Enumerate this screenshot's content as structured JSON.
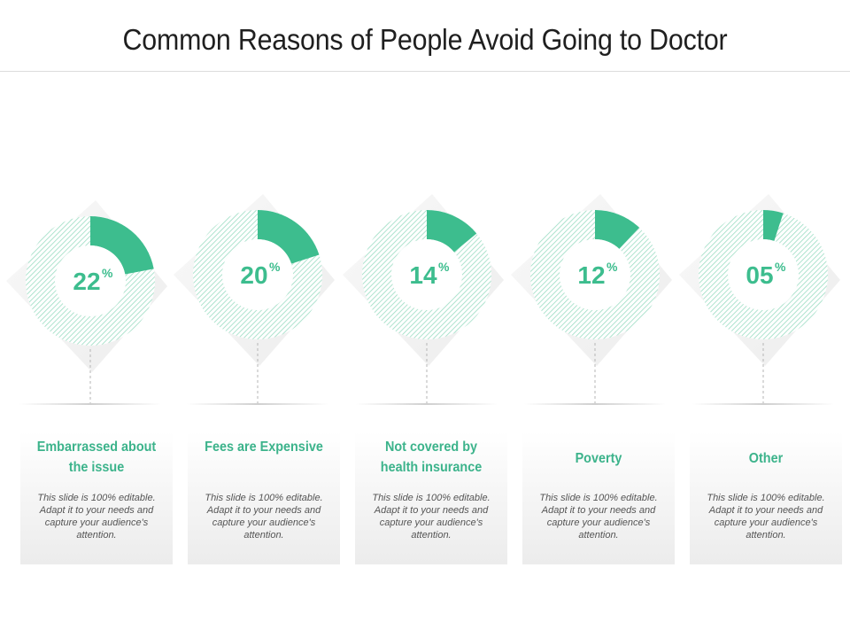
{
  "title": "Common Reasons of People Avoid Going to Doctor",
  "colors": {
    "accent": "#3dbd8e",
    "ring_stripe": "#9adcc2",
    "title_text": "#1f1f1f",
    "card_title": "#3cb38b",
    "body_text": "#555555"
  },
  "chart_data": {
    "type": "pie",
    "unit": "%",
    "categories": [
      "Embarrassed about the issue",
      "Fees are Expensive",
      "Not covered by health insurance",
      "Poverty",
      "Other"
    ],
    "values": [
      22,
      20,
      14,
      12,
      5
    ],
    "value_labels": [
      "22",
      "20",
      "14",
      "12",
      "05"
    ]
  },
  "cards": [
    {
      "title": "Embarrassed about the issue",
      "description": "This slide is 100% editable. Adapt it to your needs and capture your audience's attention."
    },
    {
      "title": "Fees are Expensive",
      "description": "This slide is 100% editable. Adapt it to your needs and capture your audience's attention."
    },
    {
      "title": "Not covered by health insurance",
      "description": "This slide is 100% editable. Adapt it to your needs and capture your audience's attention."
    },
    {
      "title": "Poverty",
      "description": "This slide is 100% editable. Adapt it to your needs and capture your audience's attention."
    },
    {
      "title": "Other",
      "description": "This slide is 100% editable. Adapt it to your needs and capture your audience's attention."
    }
  ]
}
